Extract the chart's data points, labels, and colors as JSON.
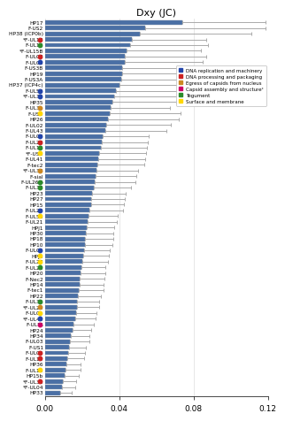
{
  "title": "Dxy (JC)",
  "xlim": [
    0,
    0.12
  ],
  "xticks": [
    0.0,
    0.04,
    0.08,
    0.12
  ],
  "xtick_labels": [
    "0.00",
    "0.04",
    "0.08",
    "0.12"
  ],
  "bar_color": "#4A6FA5",
  "bar_edge_color": "#8899AA",
  "error_color": "#AAAAAA",
  "categories": [
    "HP17",
    "F-US2",
    "HP38 (ICP0b)",
    "*F-UL17",
    "F-UL18",
    "*F-UL15B",
    "F-UL07",
    "F-UL08",
    "F-US3B",
    "HP19",
    "F-US3A",
    "HP37 (ICP4c)",
    "F-UL52",
    "*F-UL30",
    "HP35",
    "F-UL31",
    "F-US4",
    "HP26",
    "F-UL02",
    "F-UL43",
    "F-UL09",
    "F-UL28",
    "F-UL19",
    "*F-US8",
    "F-UL41",
    "F-tec2",
    "*F-UL34",
    "F-sial",
    "F-UL26.5",
    "F-UL38",
    "HP23",
    "HP27",
    "HP15",
    "F-UL29",
    "F-UL53",
    "F-UL21",
    "HPJ1",
    "HP30",
    "HP18",
    "HP10",
    "F-UL05",
    "HPJ2",
    "F-UL27",
    "F-UL26",
    "HP20",
    "F-Nec2",
    "HP14",
    "F-tec1",
    "HP22",
    "F-UL35",
    "*F-UL20",
    "F-UL01",
    "*F-UL42",
    "F-UL11",
    "HP24",
    "HP34",
    "F-UL03",
    "F-US1",
    "F-UL06",
    "F-UL12",
    "HP36",
    "F-UL10",
    "HP15b",
    "*F-UL35",
    "*F-UL04",
    "HP33"
  ],
  "values": [
    0.074,
    0.054,
    0.051,
    0.047,
    0.046,
    0.044,
    0.043,
    0.043,
    0.0415,
    0.0415,
    0.041,
    0.04,
    0.0385,
    0.0375,
    0.0365,
    0.0355,
    0.035,
    0.034,
    0.033,
    0.0325,
    0.031,
    0.0305,
    0.03,
    0.0295,
    0.029,
    0.0285,
    0.028,
    0.0275,
    0.027,
    0.0265,
    0.0255,
    0.025,
    0.0248,
    0.024,
    0.0235,
    0.023,
    0.0225,
    0.022,
    0.0218,
    0.0215,
    0.021,
    0.0205,
    0.02,
    0.0198,
    0.0195,
    0.019,
    0.0188,
    0.0185,
    0.018,
    0.0175,
    0.0172,
    0.0168,
    0.0162,
    0.0155,
    0.0148,
    0.0142,
    0.0138,
    0.0132,
    0.0128,
    0.0122,
    0.0115,
    0.0112,
    0.0105,
    0.0098,
    0.0092,
    0.0085
  ],
  "errors": [
    0.045,
    0.065,
    0.06,
    0.04,
    0.042,
    0.04,
    0.044,
    0.042,
    0.042,
    0.042,
    0.048,
    0.048,
    0.044,
    0.04,
    0.034,
    0.032,
    0.038,
    0.038,
    0.035,
    0.033,
    0.025,
    0.025,
    0.025,
    0.025,
    0.025,
    0.025,
    0.022,
    0.022,
    0.022,
    0.02,
    0.018,
    0.018,
    0.018,
    0.018,
    0.016,
    0.016,
    0.015,
    0.015,
    0.015,
    0.015,
    0.014,
    0.014,
    0.014,
    0.013,
    0.013,
    0.013,
    0.013,
    0.013,
    0.012,
    0.012,
    0.012,
    0.011,
    0.011,
    0.011,
    0.01,
    0.01,
    0.01,
    0.009,
    0.009,
    0.009,
    0.008,
    0.008,
    0.008,
    0.007,
    0.007,
    0.006
  ],
  "dot_colors": [
    null,
    null,
    null,
    "#CC2222",
    "#2B8B2B",
    null,
    "#CC2222",
    "#2244AA",
    null,
    null,
    null,
    null,
    "#2244AA",
    "#2244AA",
    null,
    "#CC8822",
    "#FFD700",
    null,
    null,
    null,
    "#2244AA",
    "#CC2222",
    "#2B8B2B",
    "#FFD700",
    null,
    null,
    "#CC8822",
    null,
    "#2B8B2B",
    "#2B8B2B",
    null,
    null,
    null,
    "#2244AA",
    "#FFD700",
    null,
    null,
    null,
    null,
    null,
    "#2244AA",
    "#FFD700",
    "#FFD700",
    "#2B8B2B",
    null,
    null,
    null,
    null,
    null,
    "#2B8B2B",
    "#CC8822",
    "#FFD700",
    "#2244AA",
    "#CC0066",
    null,
    null,
    null,
    null,
    "#CC2222",
    "#CC2222",
    null,
    "#FFD700",
    null,
    "#CC2222",
    null,
    null
  ],
  "legend": [
    {
      "label": "DNA replication and machinery",
      "color": "#2244AA"
    },
    {
      "label": "DNA processing and packaging",
      "color": "#CC2222"
    },
    {
      "label": "Egress of capsids from nucleus",
      "color": "#CC8822"
    },
    {
      "label": "Capsid assembly and structureᶜ",
      "color": "#CC0066"
    },
    {
      "label": "Tegument",
      "color": "#2B8B2B"
    },
    {
      "label": "Surface and membrane",
      "color": "#FFD700"
    }
  ]
}
